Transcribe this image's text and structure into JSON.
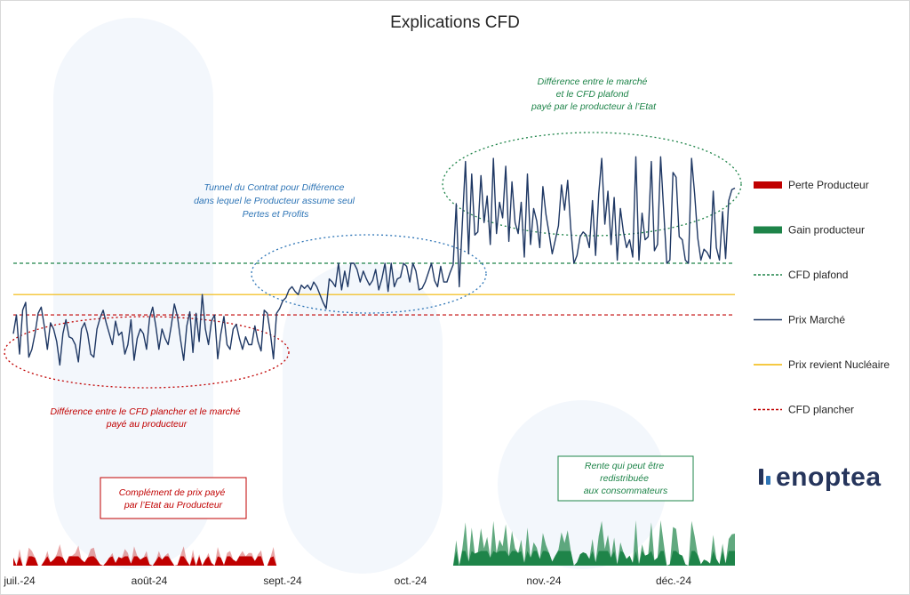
{
  "chart_data": {
    "type": "line",
    "title": "Explications CFD",
    "x_tick_labels": [
      "juil.-24",
      "août-24",
      "sept.-24",
      "oct.-24",
      "nov.-24",
      "déc.-24"
    ],
    "reference_lines": {
      "cfd_plafond": 100,
      "prix_revient_nucleaire": 80,
      "cfd_plancher": 67
    },
    "ylim": [
      0,
      200
    ],
    "series": [
      {
        "name": "Prix Marché",
        "color": "#1f3864",
        "values": [
          55,
          67,
          42,
          70,
          75,
          40,
          45,
          55,
          68,
          72,
          60,
          45,
          62,
          58,
          50,
          35,
          55,
          64,
          53,
          52,
          48,
          37,
          58,
          62,
          55,
          42,
          40,
          58,
          65,
          70,
          62,
          55,
          48,
          63,
          54,
          56,
          42,
          48,
          64,
          38,
          52,
          58,
          55,
          45,
          65,
          72,
          60,
          45,
          58,
          52,
          48,
          60,
          74,
          66,
          51,
          38,
          60,
          69,
          43,
          68,
          50,
          80,
          58,
          48,
          63,
          67,
          39,
          55,
          66,
          48,
          45,
          58,
          61,
          52,
          45,
          53,
          48,
          48,
          60,
          50,
          44,
          70,
          68,
          55,
          39,
          68,
          71,
          76,
          78,
          83,
          85,
          82,
          80,
          86,
          84,
          86,
          83,
          88,
          85,
          80,
          75,
          71,
          90,
          88,
          85,
          100,
          83,
          95,
          85,
          100,
          100,
          96,
          88,
          95,
          90,
          86,
          89,
          96,
          83,
          90,
          100,
          82,
          100,
          85,
          90,
          91,
          100,
          98,
          88,
          100,
          95,
          83,
          84,
          88,
          94,
          100,
          89,
          85,
          98,
          88,
          88,
          94,
          99,
          138,
          85,
          126,
          165,
          106,
          157,
          118,
          120,
          156,
          126,
          143,
          112,
          167,
          119,
          139,
          129,
          162,
          114,
          152,
          126,
          119,
          139,
          104,
          157,
          112,
          135,
          127,
          110,
          149,
          131,
          119,
          106,
          115,
          124,
          150,
          134,
          153,
          122,
          100,
          105,
          117,
          120,
          118,
          110,
          140,
          105,
          144,
          167,
          125,
          146,
          112,
          142,
          102,
          135,
          120,
          110,
          115,
          104,
          168,
          102,
          132,
          115,
          117,
          165,
          108,
          112,
          168,
          134,
          100,
          102,
          158,
          155,
          117,
          115,
          102,
          100,
          167,
          144,
          116,
          102,
          109,
          107,
          103,
          146,
          110,
          102,
          133,
          103,
          140,
          147,
          148
        ]
      },
      {
        "name": "Perte Producteur",
        "color": "#c00000"
      },
      {
        "name": "Gain producteur",
        "color": "#1e8449"
      },
      {
        "name": "CFD plafond",
        "color": "#1e8449"
      },
      {
        "name": "Prix revient Nucléaire",
        "color": "#f2b705"
      },
      {
        "name": "CFD plancher",
        "color": "#c00000"
      }
    ],
    "legend_order": [
      "Perte Producteur",
      "Gain producteur",
      "CFD plafond",
      "Prix Marché",
      "Prix revient Nucléaire",
      "CFD plancher"
    ],
    "legend_position": "right",
    "grid": false,
    "annotations": [
      {
        "lines": [
          "Différence entre le CFD plancher et le marché",
          "payé au producteur"
        ],
        "color": "#c00000",
        "style": "dotted-ellipse"
      },
      {
        "lines": [
          "Tunnel du Contrat pour Différence",
          "dans lequel le Producteur assume seul",
          "Pertes et Profits"
        ],
        "color": "#2e75b6",
        "style": "dotted-ellipse"
      },
      {
        "lines": [
          "Différence entre le marché",
          "et le CFD plafond",
          "payé par le producteur à l’Etat"
        ],
        "color": "#1e8449",
        "style": "dotted-ellipse"
      },
      {
        "lines": [
          "Complément de prix payé",
          "par l’Etat au Producteur"
        ],
        "color": "#c00000",
        "style": "box"
      },
      {
        "lines": [
          "Rente qui peut être",
          "redistribuée",
          "aux consommateurs"
        ],
        "color": "#1e8449",
        "style": "box"
      }
    ]
  },
  "logo": {
    "text": "enoptea",
    "color": "#26355c",
    "accent": "#2e75b6"
  }
}
